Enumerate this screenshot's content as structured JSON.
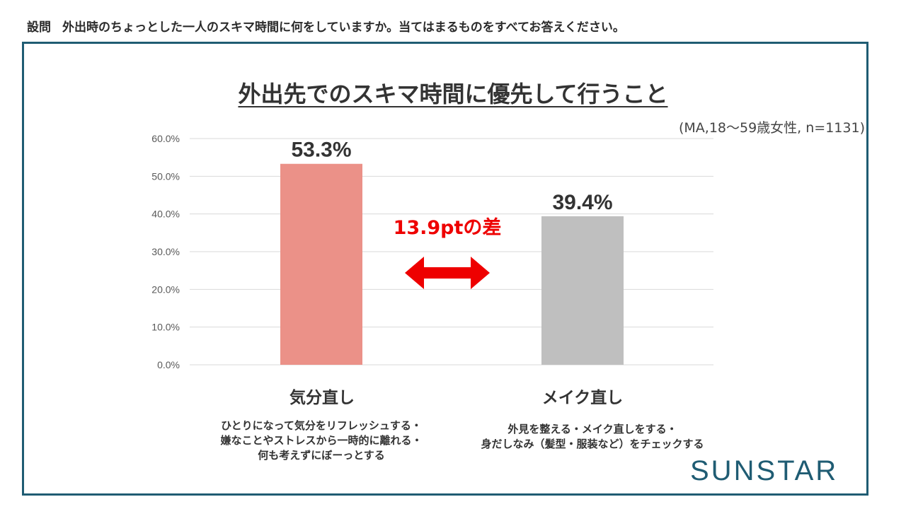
{
  "question": {
    "label": "設問",
    "text": "外出時のちょっとした一人のスキマ時間に何をしていますか。当てはまるものをすべてお答えください。"
  },
  "chart_data": {
    "type": "bar",
    "title": "外出先でのスキマ時間に優先して行うこと",
    "note": "(MA,18～59歳女性, n=1131)",
    "categories": [
      "気分直し",
      "メイク直し"
    ],
    "values": [
      53.3,
      39.4
    ],
    "data_labels": [
      "53.3%",
      "39.4%"
    ],
    "bar_colors": [
      "#eb9188",
      "#bfbfbf"
    ],
    "ylim": [
      0,
      60
    ],
    "yticks": [
      0,
      10,
      20,
      30,
      40,
      50,
      60
    ],
    "ytick_labels": [
      "0.0%",
      "10.0%",
      "20.0%",
      "30.0%",
      "40.0%",
      "50.0%",
      "60.0%"
    ],
    "grid": true,
    "annotation": {
      "text": "13.9ptの差",
      "color": "#ee0000",
      "arrow": "double-headed"
    },
    "category_descriptions": [
      [
        "ひとりになって気分をリフレッシュする・",
        "嫌なことやストレスから一時的に離れる・",
        "何も考えずにぼーっとする"
      ],
      [
        "外見を整える・メイク直しをする・",
        "身だしなみ（髪型・服装など）をチェックする"
      ]
    ]
  },
  "brand": "SUNSTAR"
}
